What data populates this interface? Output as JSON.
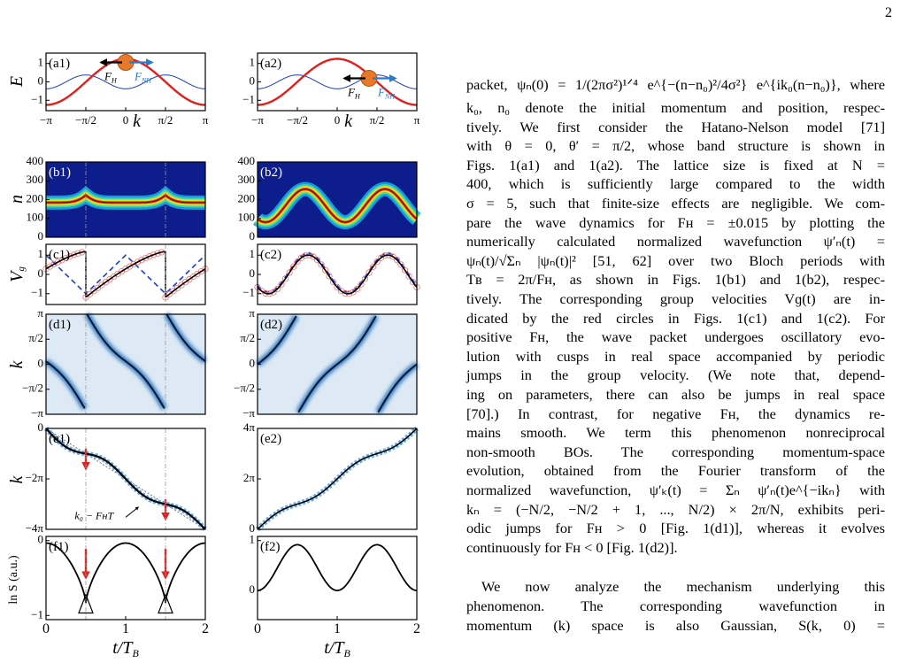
{
  "page_number": "2",
  "figure": {
    "y_axis_titles": [
      {
        "main": "E",
        "sub": ""
      },
      {
        "main": "n",
        "sub": ""
      },
      {
        "main": "V",
        "sub": "g"
      },
      {
        "main": "k",
        "sub": ""
      },
      {
        "main": "k",
        "sub": ""
      },
      {
        "main": "ln S (a.u.)",
        "sub": ""
      }
    ],
    "panels": [
      {
        "label": "(a1)",
        "yticks": [
          "1",
          "0",
          "−1"
        ],
        "xticks": [
          "−π",
          "−π/2",
          "0",
          "π/2",
          "π"
        ],
        "xlabel": "k",
        "annotations": [
          "F",
          "H",
          "F",
          "NH"
        ]
      },
      {
        "label": "(a2)",
        "yticks": [
          "1",
          "0",
          "−1"
        ],
        "xticks": [
          "−π",
          "−π/2",
          "0",
          "π/2",
          "π"
        ],
        "xlabel": "k",
        "annotations": [
          "F",
          "H",
          "F",
          "NH"
        ]
      },
      {
        "label": "(b1)",
        "yticks": [
          "400",
          "300",
          "200",
          "100",
          "0"
        ]
      },
      {
        "label": "(b2)",
        "yticks": [
          "400",
          "300",
          "200",
          "100",
          "0"
        ]
      },
      {
        "label": "(c1)",
        "yticks": [
          "1",
          "0",
          "−1"
        ]
      },
      {
        "label": "(c2)",
        "yticks": [
          "1",
          "0",
          "−1"
        ]
      },
      {
        "label": "(d1)",
        "yticks": [
          "π",
          "π/2",
          "0",
          "−π/2",
          "−π"
        ]
      },
      {
        "label": "(d2)",
        "yticks": [
          "π",
          "π/2",
          "0",
          "−π/2",
          "−π"
        ]
      },
      {
        "label": "(e1)",
        "yticks": [
          "0",
          "−2π",
          "−4π"
        ],
        "annotation": "k₀ − FʜT"
      },
      {
        "label": "(e2)",
        "yticks": [
          "4π",
          "2π",
          "0"
        ]
      },
      {
        "label": "(f1)",
        "yticks": [
          "0",
          "−1"
        ],
        "xticks": [
          "0",
          "1",
          "2"
        ],
        "xlabel": {
          "main": "t/T",
          "sub": "B"
        }
      },
      {
        "label": "(f2)",
        "yticks": [
          "1",
          "0"
        ],
        "xticks": [
          "0",
          "1",
          "2"
        ],
        "xlabel": {
          "main": "t/T",
          "sub": "B"
        }
      }
    ]
  },
  "paragraphs": [
    [
      "packet, ψₙ(0) = 1/(2πσ²)¹ᐟ⁴ e^{−(n−n₀)²/4σ²} e^{ik₀(n−n₀)}, where",
      "k₀, n₀ denote the initial momentum and position, respec-",
      "tively. We first consider the Hatano-Nelson model [71]",
      "with θ = 0, θ′ = π/2, whose band structure is shown in",
      "Figs. 1(a1) and 1(a2). The lattice size is fixed at N =",
      "400, which is sufficiently large compared to the width",
      "σ = 5, such that finite-size effects are negligible. We com-",
      "pare the wave dynamics for Fʜ = ±0.015 by plotting the",
      "numerically calculated normalized wavefunction ψ′ₙ(t) =",
      "ψₙ(t)/√Σₙ |ψₙ(t)|² [51, 62] over two Bloch periods with",
      "Tʙ = 2π/Fʜ, as shown in Figs. 1(b1) and 1(b2), respec-",
      "tively. The corresponding group velocities Vɡ(t) are in-",
      "dicated by the red circles in Figs. 1(c1) and 1(c2). For",
      "positive Fʜ, the wave packet undergoes oscillatory evo-",
      "lution with cusps in real space accompanied by periodic",
      "jumps in the group velocity. (We note that, depend-",
      "ing on parameters, there can also be jumps in real space",
      "[70].) In contrast, for negative Fʜ, the dynamics re-",
      "mains smooth. We term this phenomenon nonreciprocal",
      "non-smooth BOs. The corresponding momentum-space",
      "evolution, obtained from the Fourier transform of the",
      "normalized wavefunction, ψ′ₖ(t) = Σₙ ψ′ₙ(t)e^{−ikₙ} with",
      "kₙ = (−N/2, −N/2 + 1, ..., N/2) × 2π/N, exhibits peri-",
      "odic jumps for Fʜ > 0 [Fig. 1(d1)], whereas it evolves",
      "continuously for Fʜ < 0 [Fig. 1(d2)]."
    ],
    [
      "We now analyze the mechanism underlying this",
      "phenomenon. The corresponding wavefunction in",
      "momentum (k) space is also Gaussian, S(k, 0) ="
    ]
  ]
}
